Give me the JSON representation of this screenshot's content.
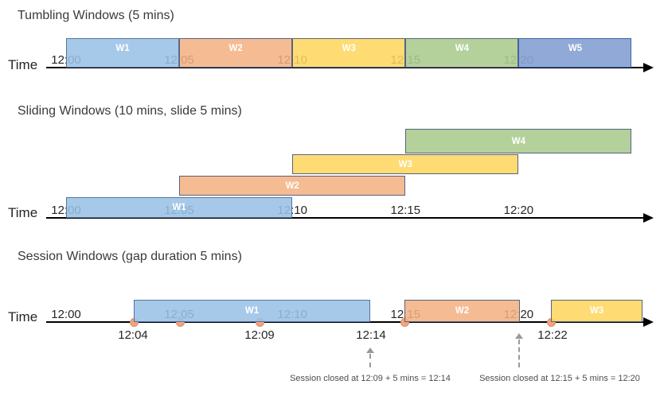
{
  "diagram": {
    "timelines": [
      {
        "title": "Tumbling Windows (5 mins)",
        "time_label": "Time",
        "ticks": [
          "12:00",
          "12:05",
          "12:10",
          "12:15",
          "12:20"
        ],
        "windows": [
          {
            "label": "W1",
            "color": "blue",
            "start": "12:00",
            "end": "12:05"
          },
          {
            "label": "W2",
            "color": "orange",
            "start": "12:05",
            "end": "12:10"
          },
          {
            "label": "W3",
            "color": "yellow",
            "start": "12:10",
            "end": "12:15"
          },
          {
            "label": "W4",
            "color": "green",
            "start": "12:15",
            "end": "12:20"
          },
          {
            "label": "W5",
            "color": "blue2",
            "start": "12:20",
            "end": "12:25"
          }
        ]
      },
      {
        "title": "Sliding Windows (10 mins, slide 5 mins)",
        "time_label": "Time",
        "ticks": [
          "12:00",
          "12:05",
          "12:10",
          "12:15",
          "12:20"
        ],
        "windows": [
          {
            "label": "W1",
            "color": "blue",
            "start": "12:00",
            "end": "12:10"
          },
          {
            "label": "W2",
            "color": "orange",
            "start": "12:05",
            "end": "12:15"
          },
          {
            "label": "W3",
            "color": "yellow",
            "start": "12:10",
            "end": "12:20"
          },
          {
            "label": "W4",
            "color": "green",
            "start": "12:15",
            "end": "12:25"
          }
        ]
      },
      {
        "title": "Session Windows (gap duration 5 mins)",
        "time_label": "Time",
        "ticks": [
          "12:00",
          "12:05",
          "12:10",
          "12:15",
          "12:20"
        ],
        "windows": [
          {
            "label": "W1",
            "color": "blue",
            "start": "12:04",
            "end": "12:14"
          },
          {
            "label": "W2",
            "color": "orange",
            "start": "12:15",
            "end": "12:20"
          },
          {
            "label": "W3",
            "color": "yellow",
            "start": "12:22"
          }
        ],
        "event_labels": [
          "12:04",
          "12:09",
          "12:14",
          "12:22"
        ],
        "callouts": [
          "Session closed at 12:09 + 5 mins = 12:14",
          "Session closed at 12:15 + 5 mins = 12:20"
        ]
      }
    ],
    "colors": {
      "blue": {
        "fill": "rgba(154,193,230,0.87)",
        "border": "#54749e"
      },
      "orange": {
        "fill": "rgba(243,176,129,0.86)",
        "border": "#56647e"
      },
      "yellow": {
        "fill": "rgba(255,213,92,0.86)",
        "border": "#56647e"
      },
      "green": {
        "fill": "rgba(172,204,144,0.90)",
        "border": "#56647e"
      },
      "blue2": {
        "fill": "rgba(137,163,212,0.93)",
        "border": "#3c64a8"
      },
      "event_dot_fill": "#F2A47F",
      "event_dot_border": "#DD8F66",
      "axis": "#000000",
      "callout_arrow": "#999999"
    }
  }
}
